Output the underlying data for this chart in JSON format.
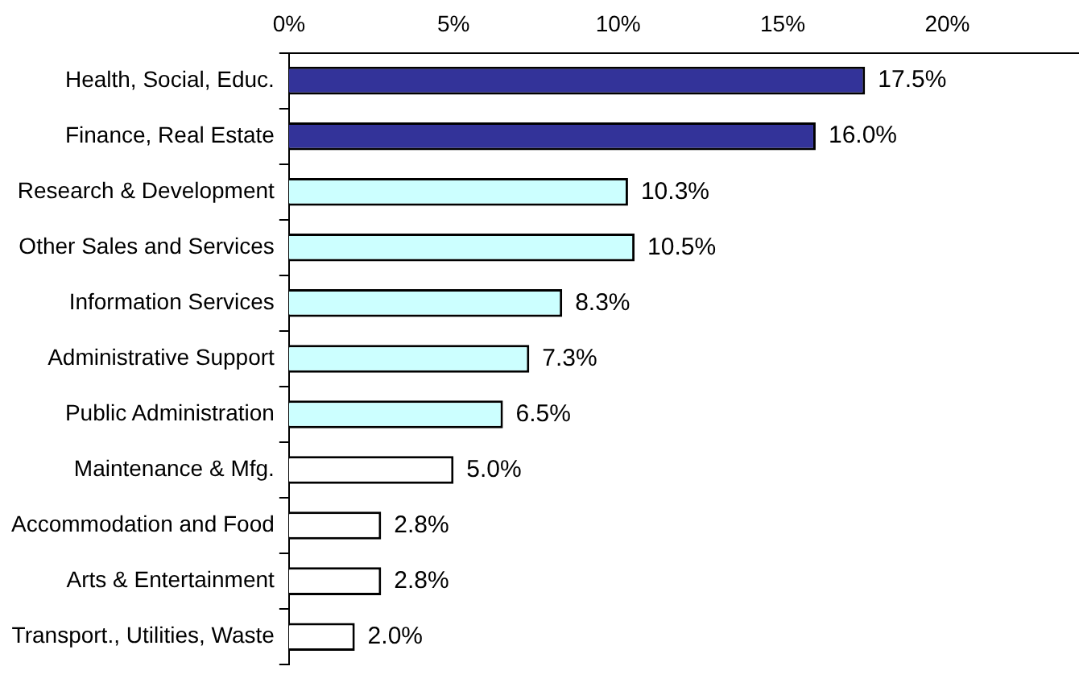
{
  "chart_data": {
    "type": "bar",
    "orientation": "horizontal",
    "categories": [
      "Health, Social, Educ.",
      "Finance, Real Estate",
      "Research & Development",
      "Other Sales and Services",
      "Information Services",
      "Administrative Support",
      "Public Administration",
      "Maintenance & Mfg.",
      "Accommodation and Food",
      "Arts & Entertainment",
      "Transport., Utilities, Waste"
    ],
    "values": [
      17.5,
      16.0,
      10.3,
      10.5,
      8.3,
      7.3,
      6.5,
      5.0,
      2.8,
      2.8,
      2.0
    ],
    "colors": [
      "#333399",
      "#333399",
      "#ccffff",
      "#ccffff",
      "#ccffff",
      "#ccffff",
      "#ccffff",
      "#ffffff",
      "#ffffff",
      "#ffffff",
      "#ffffff"
    ],
    "value_labels": [
      "17.5%",
      "16.0%",
      "10.3%",
      "10.5%",
      "8.3%",
      "7.3%",
      "6.5%",
      "5.0%",
      "2.8%",
      "2.8%",
      "2.0%"
    ],
    "xlim": [
      0,
      24
    ],
    "xticks": [
      {
        "value": 0,
        "label": "0%"
      },
      {
        "value": 5,
        "label": "5%"
      },
      {
        "value": 10,
        "label": "10%"
      },
      {
        "value": 15,
        "label": "15%"
      },
      {
        "value": 20,
        "label": "20%"
      }
    ],
    "grid": false,
    "legend": false
  }
}
